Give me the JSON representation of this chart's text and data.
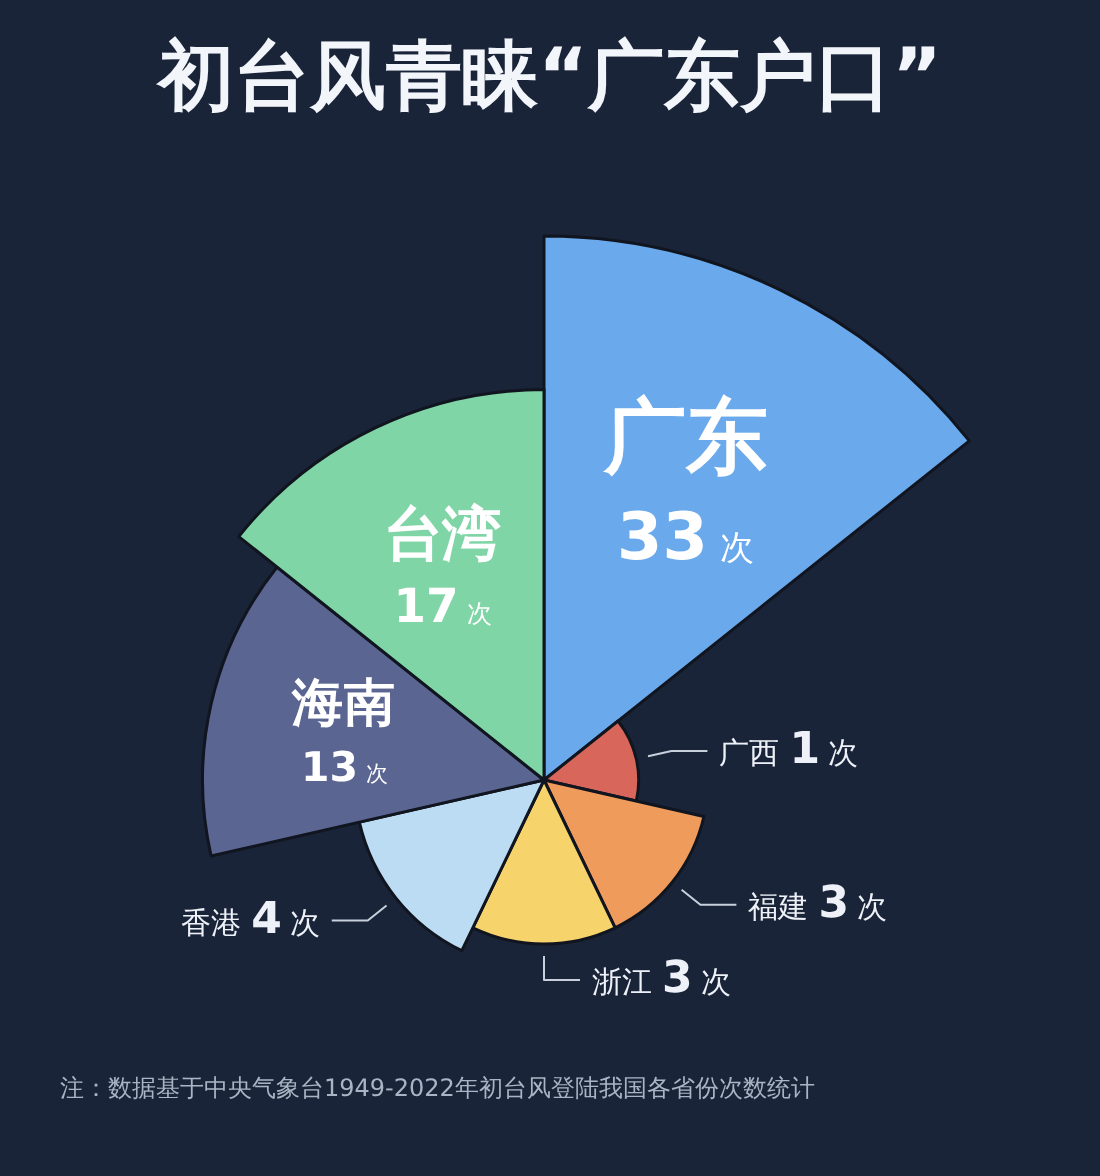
{
  "chart_data": {
    "type": "other",
    "title": "初台风青睐“广东户口”",
    "categories": [
      "广东",
      "广西",
      "福建",
      "浙江",
      "香港",
      "海南",
      "台湾"
    ],
    "values": [
      33,
      1,
      3,
      3,
      4,
      13,
      17
    ],
    "colors": [
      "#6aaaec",
      "#d9665a",
      "#ef9b5b",
      "#f7d36b",
      "#bcdcf4",
      "#5b6592",
      "#80d5a7"
    ],
    "value_labels": [
      "33 次",
      "1 次",
      "3 次",
      "3 次",
      "4 次",
      "13 次",
      "17 次"
    ],
    "annotations": [
      "注：数据基于中央气象台1949-2022年初台风登陆我国各省份次数统计"
    ]
  }
}
